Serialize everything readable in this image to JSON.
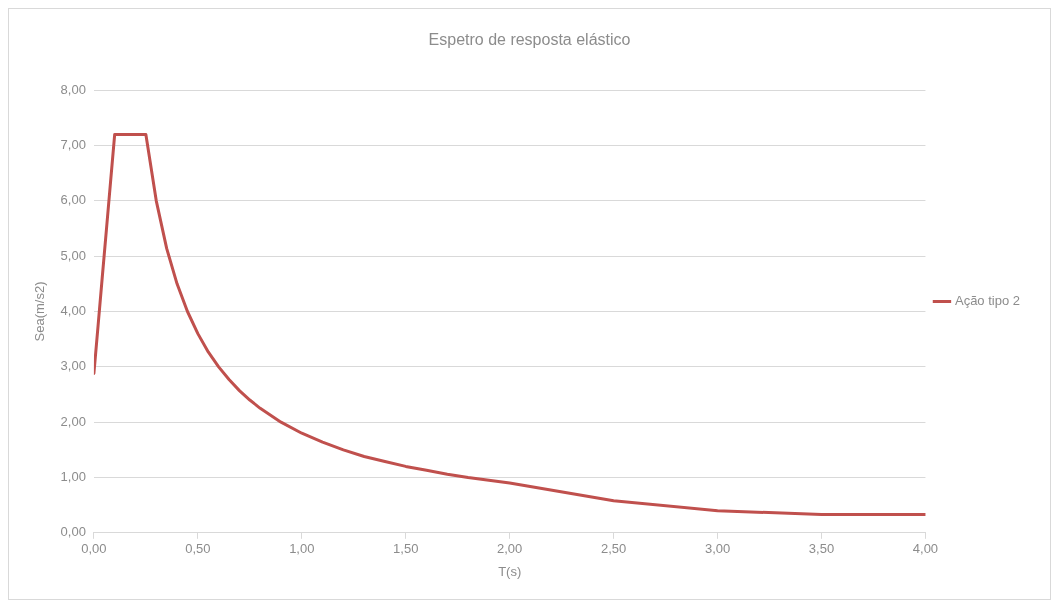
{
  "chart_data": {
    "type": "line",
    "title": "Espetro de resposta elástico",
    "xlabel": "T(s)",
    "ylabel": "Sea(m/s2)",
    "x": [
      0,
      0.02,
      0.04,
      0.06,
      0.08,
      0.1,
      0.15,
      0.2,
      0.25,
      0.3,
      0.35,
      0.4,
      0.45,
      0.5,
      0.55,
      0.6,
      0.65,
      0.7,
      0.75,
      0.8,
      0.9,
      1.0,
      1.1,
      1.2,
      1.3,
      1.4,
      1.5,
      1.6,
      1.7,
      1.8,
      1.9,
      2.0,
      2.5,
      3.0,
      3.5,
      4.0
    ],
    "series": [
      {
        "name": "Ação tipo 2",
        "color": "#c0504d",
        "values": [
          2.88,
          3.74,
          4.61,
          5.47,
          6.34,
          7.2,
          7.2,
          7.2,
          7.2,
          6.0,
          5.14,
          4.5,
          4.0,
          3.6,
          3.27,
          3.0,
          2.77,
          2.57,
          2.4,
          2.25,
          2.0,
          1.8,
          1.64,
          1.5,
          1.38,
          1.29,
          1.2,
          1.13,
          1.06,
          1.0,
          0.95,
          0.9,
          0.58,
          0.4,
          0.33,
          0.33
        ]
      }
    ],
    "xlim": [
      0,
      4
    ],
    "xticks": [
      {
        "value": 0,
        "label": "0,00"
      },
      {
        "value": 0.5,
        "label": "0,50"
      },
      {
        "value": 1,
        "label": "1,00"
      },
      {
        "value": 1.5,
        "label": "1,50"
      },
      {
        "value": 2,
        "label": "2,00"
      },
      {
        "value": 2.5,
        "label": "2,50"
      },
      {
        "value": 3,
        "label": "3,00"
      },
      {
        "value": 3.5,
        "label": "3,50"
      },
      {
        "value": 4,
        "label": "4,00"
      }
    ],
    "ylim": [
      0,
      8
    ],
    "yticks": [
      {
        "value": 0,
        "label": "0,00"
      },
      {
        "value": 1,
        "label": "1,00"
      },
      {
        "value": 2,
        "label": "2,00"
      },
      {
        "value": 3,
        "label": "3,00"
      },
      {
        "value": 4,
        "label": "4,00"
      },
      {
        "value": 5,
        "label": "5,00"
      },
      {
        "value": 6,
        "label": "6,00"
      },
      {
        "value": 7,
        "label": "7,00"
      },
      {
        "value": 8,
        "label": "8,00"
      }
    ],
    "grid": "y",
    "legend": "right",
    "marker": "none",
    "line_style": "solid"
  }
}
